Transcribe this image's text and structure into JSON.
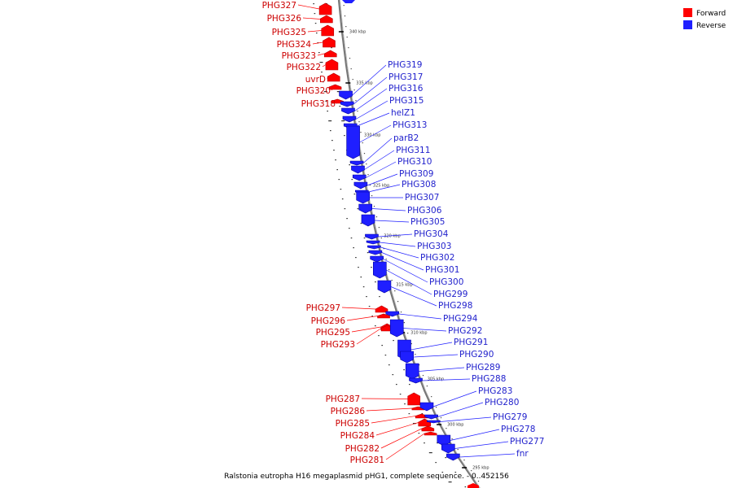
{
  "caption": "Ralstonia eutropha H16 megaplasmid pHG1, complete sequence. - 0..452156",
  "colors": {
    "forward": "#ff0000",
    "forward_dark": "#b30000",
    "reverse": "#1f1fff",
    "reverse_dark": "#0000a0",
    "backbone": "#777777",
    "forward_label": "#cc0000",
    "reverse_label": "#1f1fcc"
  },
  "legend": [
    {
      "label": "Forward",
      "strand": "forward"
    },
    {
      "label": "Reverse",
      "strand": "reverse"
    }
  ],
  "ticks": [
    "340 kbp",
    "335 kbp",
    "330 kbp",
    "325 kbp",
    "320 kbp",
    "315 kbp",
    "310 kbp",
    "305 kbp",
    "300 kbp",
    "295 kbp"
  ],
  "forward_genes": [
    "PHG327",
    "PHG326",
    "PHG325",
    "PHG324",
    "PHG323",
    "PHG322",
    "uvrD",
    "PHG320",
    "PHG318",
    "PHG297",
    "PHG296",
    "PHG295",
    "PHG293",
    "PHG287",
    "PHG286",
    "PHG285",
    "PHG284",
    "PHG282",
    "PHG281"
  ],
  "reverse_genes": [
    "PHG319",
    "PHG317",
    "PHG316",
    "PHG315",
    "helZ1",
    "PHG313",
    "parB2",
    "PHG311",
    "PHG310",
    "PHG309",
    "PHG308",
    "PHG307",
    "PHG306",
    "PHG305",
    "PHG304",
    "PHG303",
    "PHG302",
    "PHG301",
    "PHG300",
    "PHG299",
    "PHG298",
    "PHG294",
    "PHG292",
    "PHG291",
    "PHG290",
    "PHG289",
    "PHG288",
    "PHG283",
    "PHG280",
    "PHG279",
    "PHG278",
    "PHG277",
    "fnr"
  ]
}
